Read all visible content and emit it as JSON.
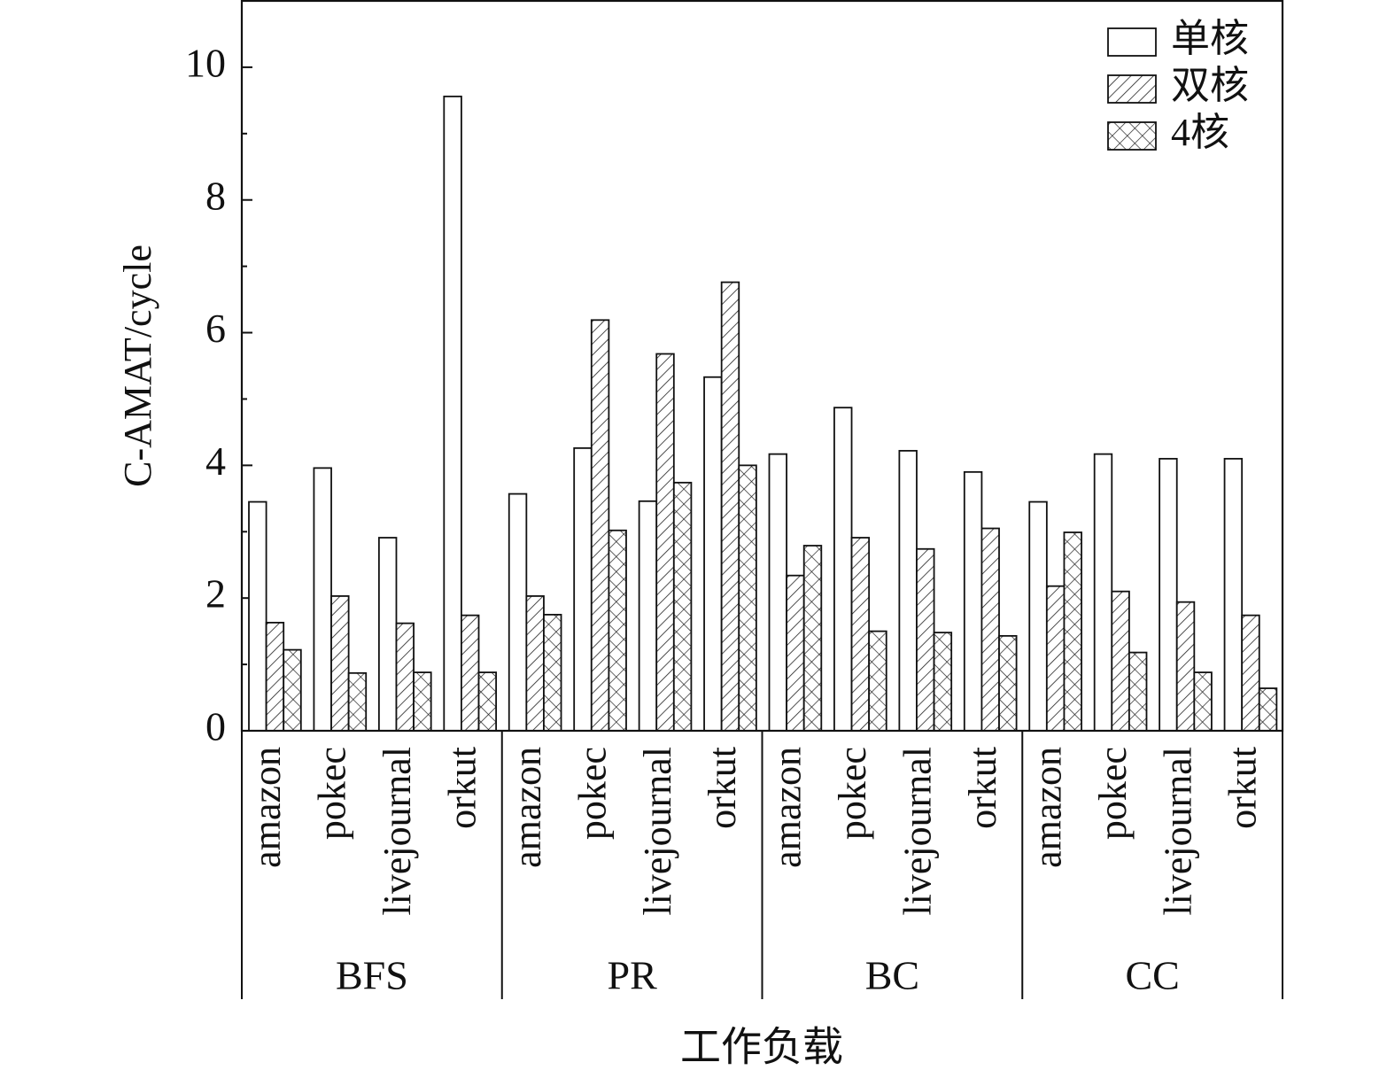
{
  "chart_data": {
    "type": "bar",
    "y_label": "C-AMAT/cycle",
    "x_label": "工作负载",
    "group_labels": [
      "BFS",
      "PR",
      "BC",
      "CC"
    ],
    "categories": [
      "amazon",
      "pokec",
      "livejournal",
      "orkut",
      "amazon",
      "pokec",
      "livejournal",
      "orkut",
      "amazon",
      "pokec",
      "livejournal",
      "orkut",
      "amazon",
      "pokec",
      "livejournal",
      "orkut"
    ],
    "series": [
      {
        "name": "单核",
        "color": "#ffffff",
        "pattern": "none",
        "values": [
          3.45,
          3.96,
          2.91,
          9.56,
          3.57,
          4.26,
          3.46,
          5.33,
          4.17,
          4.87,
          4.22,
          3.9,
          3.45,
          4.17,
          4.1,
          4.1
        ]
      },
      {
        "name": "双核",
        "color": "#ffffff",
        "pattern": "hatch",
        "values": [
          1.63,
          2.03,
          1.62,
          1.74,
          2.03,
          6.19,
          5.68,
          6.76,
          2.34,
          2.91,
          2.74,
          3.05,
          2.18,
          2.1,
          1.94,
          1.74
        ]
      },
      {
        "name": "4核",
        "color": "#ffffff",
        "pattern": "crosshatch",
        "values": [
          1.22,
          0.87,
          0.88,
          0.88,
          1.75,
          3.02,
          3.74,
          4.0,
          2.79,
          1.5,
          1.48,
          1.43,
          2.99,
          1.18,
          0.88,
          0.64
        ]
      }
    ],
    "ylim": [
      0,
      11
    ],
    "yticks": [
      0,
      2,
      4,
      6,
      8,
      10
    ],
    "yminor_ticks": [
      1,
      3,
      5,
      7,
      9
    ],
    "legend": "upper right"
  }
}
